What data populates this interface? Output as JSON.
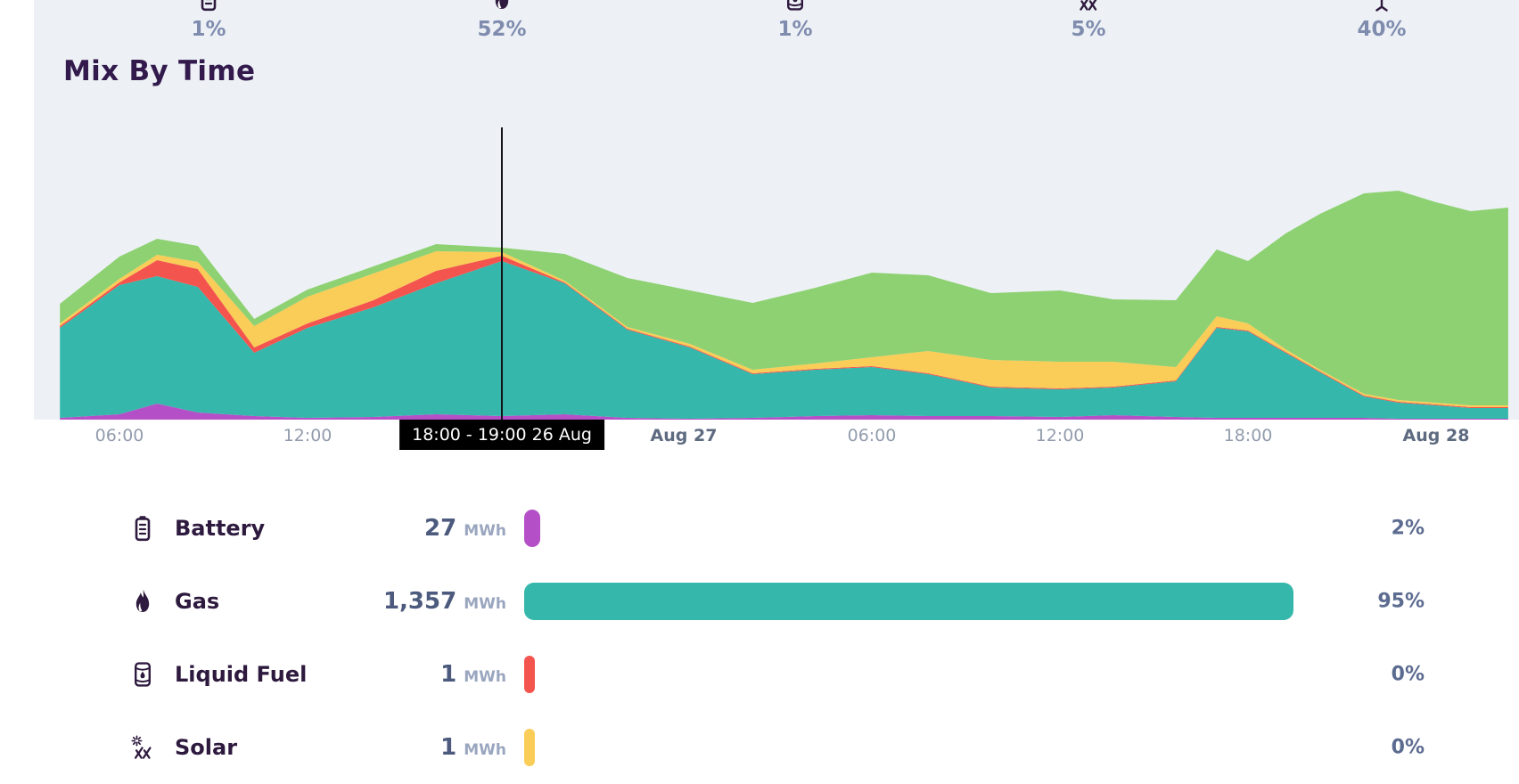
{
  "colors": {
    "panel_bg": "#edf1f6",
    "battery": "#b54fc8",
    "gas": "#35b8ab",
    "liquid_fuel": "#f4544e",
    "solar": "#f9cd57",
    "wind": "#8ed172",
    "icon_ink": "#2e1a3e"
  },
  "top_stats": {
    "items": [
      {
        "name": "battery",
        "icon": "battery-icon",
        "percent": "1%"
      },
      {
        "name": "gas",
        "icon": "flame-icon",
        "percent": "52%"
      },
      {
        "name": "liquid-fuel",
        "icon": "barrel-icon",
        "percent": "1%"
      },
      {
        "name": "solar",
        "icon": "solar-icon",
        "percent": "5%"
      },
      {
        "name": "wind",
        "icon": "wind-turbine-icon",
        "percent": "40%"
      }
    ]
  },
  "section": {
    "title": "Mix By Time"
  },
  "chart_data": {
    "type": "area",
    "stacked": true,
    "title": "Mix By Time",
    "grid": false,
    "legend_position": "none",
    "x": {
      "description": "hours from 26 Aug 00:00",
      "values": [
        4.1,
        6,
        7.2,
        8.5,
        10.3,
        12,
        14.1,
        16.1,
        18.2,
        20.2,
        22.2,
        24.2,
        26.2,
        28.2,
        30,
        31.8,
        33.8,
        36,
        37.7,
        39.7,
        41,
        42,
        43.2,
        44.3,
        45.7,
        46.8,
        48,
        49.1,
        50.3
      ]
    },
    "ticks": [
      {
        "t": 6,
        "label": "06:00",
        "bold": false
      },
      {
        "t": 12,
        "label": "12:00",
        "bold": false
      },
      {
        "t": 18,
        "label": "18:00",
        "bold": false
      },
      {
        "t": 24,
        "label": "Aug 27",
        "bold": true
      },
      {
        "t": 30,
        "label": "06:00",
        "bold": false
      },
      {
        "t": 36,
        "label": "12:00",
        "bold": false
      },
      {
        "t": 42,
        "label": "18:00",
        "bold": false
      },
      {
        "t": 48,
        "label": "Aug 28",
        "bold": true
      }
    ],
    "y_units": "relative height, y axis unlabeled",
    "ylim": [
      0,
      328
    ],
    "series": [
      {
        "name": "Battery",
        "color": "#b54fc8",
        "values": [
          2,
          6,
          18,
          8,
          4,
          2,
          3,
          6,
          4,
          6,
          2,
          1,
          2,
          4,
          5,
          4,
          4,
          3,
          5,
          3,
          2,
          2,
          2,
          2,
          2,
          1,
          1,
          1,
          1
        ]
      },
      {
        "name": "Gas",
        "color": "#35b8ab",
        "values": [
          101,
          145,
          143,
          141,
          71,
          101,
          123,
          147,
          174,
          147,
          99,
          80,
          49,
          52,
          54,
          47,
          32,
          31,
          31,
          40,
          101,
          97,
          73,
          51,
          24,
          18,
          15,
          12,
          12
        ]
      },
      {
        "name": "Liquid Fuel",
        "color": "#f4544e",
        "values": [
          2,
          3,
          18,
          20,
          6,
          5,
          8,
          14,
          6,
          1,
          1,
          1,
          1,
          1,
          1,
          1,
          1,
          1,
          1,
          1,
          1,
          1,
          1,
          1,
          1,
          1,
          1,
          1,
          1
        ]
      },
      {
        "name": "Solar",
        "color": "#f9cd57",
        "values": [
          3,
          4,
          6,
          8,
          24,
          30,
          30,
          22,
          4,
          2,
          2,
          3,
          4,
          6,
          10,
          25,
          30,
          30,
          28,
          15,
          12,
          8,
          3,
          2,
          2,
          2,
          2,
          2,
          2
        ]
      },
      {
        "name": "Wind",
        "color": "#8ed172",
        "values": [
          22,
          25,
          18,
          18,
          8,
          8,
          8,
          8,
          5,
          30,
          55,
          60,
          75,
          85,
          95,
          85,
          75,
          80,
          70,
          75,
          75,
          70,
          130,
          175,
          225,
          235,
          225,
          218,
          222
        ]
      }
    ],
    "cursor": {
      "t": 18.2,
      "label": "18:00 - 19:00 26 Aug"
    }
  },
  "breakdown": {
    "unit": "MWh",
    "rows": [
      {
        "label": "Battery",
        "icon": "battery-icon",
        "value": "27",
        "unit": "MWh",
        "percent": "2%",
        "bar_pct": 2,
        "color": "#b54fc8"
      },
      {
        "label": "Gas",
        "icon": "flame-icon",
        "value": "1,357",
        "unit": "MWh",
        "percent": "95%",
        "bar_pct": 95,
        "color": "#35b8ab"
      },
      {
        "label": "Liquid Fuel",
        "icon": "barrel-icon",
        "value": "1",
        "unit": "MWh",
        "percent": "0%",
        "bar_pct": 0,
        "color": "#f4544e"
      },
      {
        "label": "Solar",
        "icon": "solar-icon",
        "value": "1",
        "unit": "MWh",
        "percent": "0%",
        "bar_pct": 0,
        "color": "#f9cd57"
      }
    ]
  }
}
